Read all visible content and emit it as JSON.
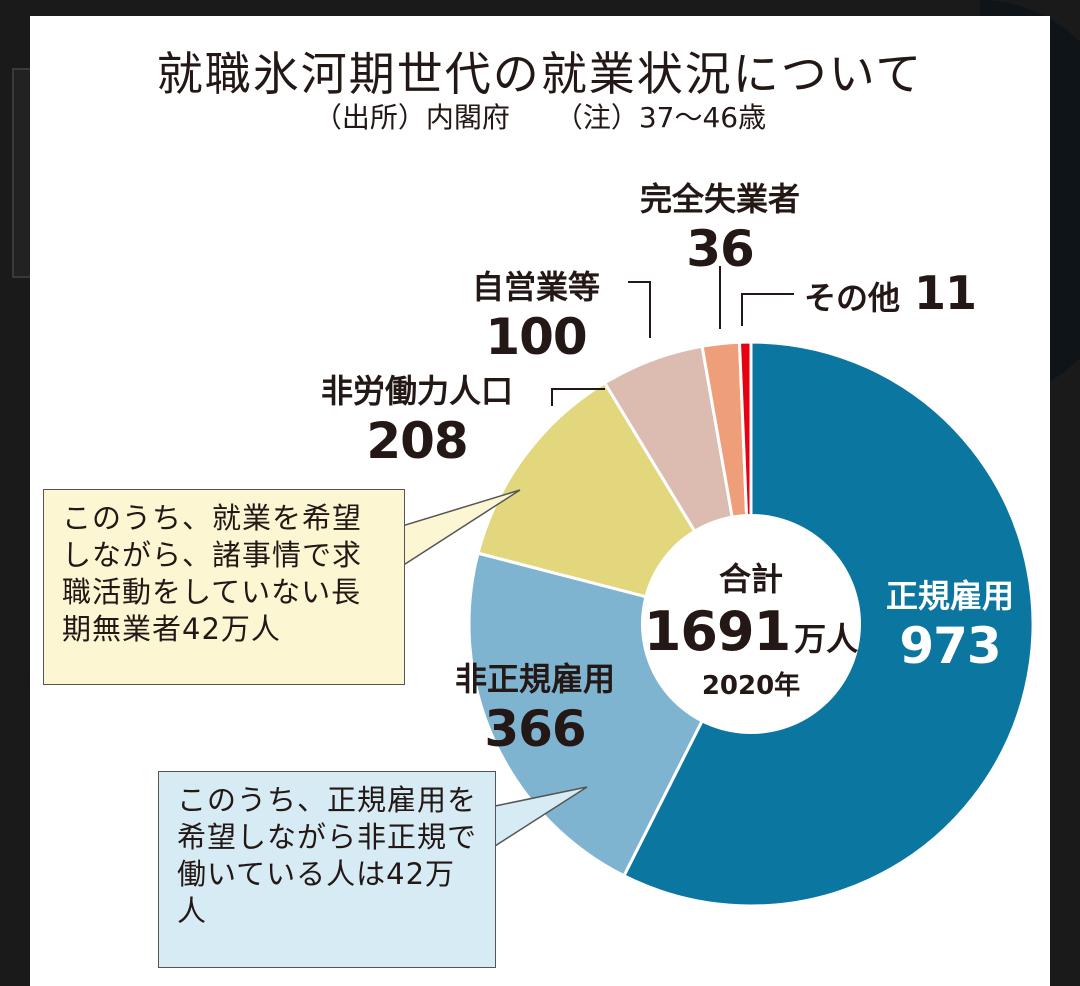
{
  "chart_data": {
    "type": "pie",
    "title": "就職氷河期世代の就業状況について",
    "source": "（出所）内閣府",
    "note": "（注）37〜46歳",
    "total_label": "合計",
    "total_value": "1691",
    "total_unit": "万人",
    "year": "2020年",
    "slices": [
      {
        "name": "正規雇用",
        "value": 973,
        "color": "#0b76a0"
      },
      {
        "name": "非正規雇用",
        "value": 366,
        "color": "#7fb4d0"
      },
      {
        "name": "非労働力人口",
        "value": 208,
        "color": "#e3d77e"
      },
      {
        "name": "自営業等",
        "value": 100,
        "color": "#dcbbb0"
      },
      {
        "name": "完全失業者",
        "value": 36,
        "color": "#ef9e7a"
      },
      {
        "name": "その他",
        "value": 11,
        "color": "#e60012"
      }
    ]
  },
  "callouts": {
    "non_labor": "このうち、就業を希望しながら、諸事情で求職活動をしていない長期無業者42万人",
    "non_regular": "このうち、正規雇用を希望しながら非正規で働いている人は42万人"
  }
}
